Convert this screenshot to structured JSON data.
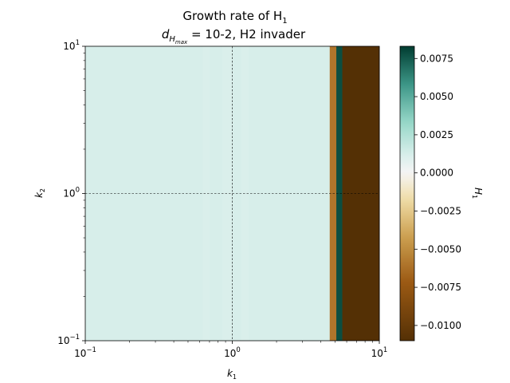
{
  "chart_data": {
    "type": "heatmap",
    "title_line1": "Growth rate of H",
    "title_line1_sub": "1",
    "title_line2_prefix": "d",
    "title_line2_sub": "H",
    "title_line2_subsub": "max",
    "title_line2_rest": " = 10-2, H2 invader",
    "xlabel": "k",
    "xlabel_sub": "1",
    "ylabel": "k",
    "ylabel_sub": "2",
    "x_scale": "log",
    "y_scale": "log",
    "xlim": [
      0.1,
      10
    ],
    "ylim": [
      0.1,
      10
    ],
    "x_ticks": [
      {
        "value": 0.1,
        "base": "10",
        "exp": "−1"
      },
      {
        "value": 1,
        "base": "10",
        "exp": "0"
      },
      {
        "value": 10,
        "base": "10",
        "exp": "1"
      }
    ],
    "y_ticks": [
      {
        "value": 0.1,
        "base": "10",
        "exp": "−1"
      },
      {
        "value": 1,
        "base": "10",
        "exp": "0"
      },
      {
        "value": 10,
        "base": "10",
        "exp": "1"
      }
    ],
    "grid_lines": {
      "x": [
        1
      ],
      "y": [
        1
      ],
      "style": "dashed"
    },
    "columns": [
      {
        "k1_from": 0.1,
        "k1_to": 0.63,
        "value": 0.0012
      },
      {
        "k1_from": 0.63,
        "k1_to": 0.7,
        "value": 0.0011
      },
      {
        "k1_from": 0.7,
        "k1_to": 0.85,
        "value": 0.0012
      },
      {
        "k1_from": 0.85,
        "k1_to": 1.0,
        "value": 0.0011
      },
      {
        "k1_from": 1.0,
        "k1_to": 1.15,
        "value": 0.0012
      },
      {
        "k1_from": 1.15,
        "k1_to": 1.3,
        "value": 0.0011
      },
      {
        "k1_from": 1.3,
        "k1_to": 4.6,
        "value": 0.0012
      },
      {
        "k1_from": 4.6,
        "k1_to": 5.1,
        "value": -0.006
      },
      {
        "k1_from": 5.1,
        "k1_to": 5.6,
        "value": 0.0078
      },
      {
        "k1_from": 5.6,
        "k1_to": 10,
        "value": -0.011
      }
    ],
    "colorbar": {
      "label": "H",
      "label_sub": "1",
      "vmin": -0.011,
      "vmax": 0.0083,
      "cmap": "BrBG",
      "ticks": [
        0.0075,
        0.005,
        0.0025,
        0.0,
        -0.0025,
        -0.005,
        -0.0075,
        -0.01
      ],
      "tick_labels": [
        "0.0075",
        "0.0050",
        "0.0025",
        "0.0000",
        "−0.0025",
        "−0.0050",
        "−0.0075",
        "−0.0100"
      ]
    }
  }
}
